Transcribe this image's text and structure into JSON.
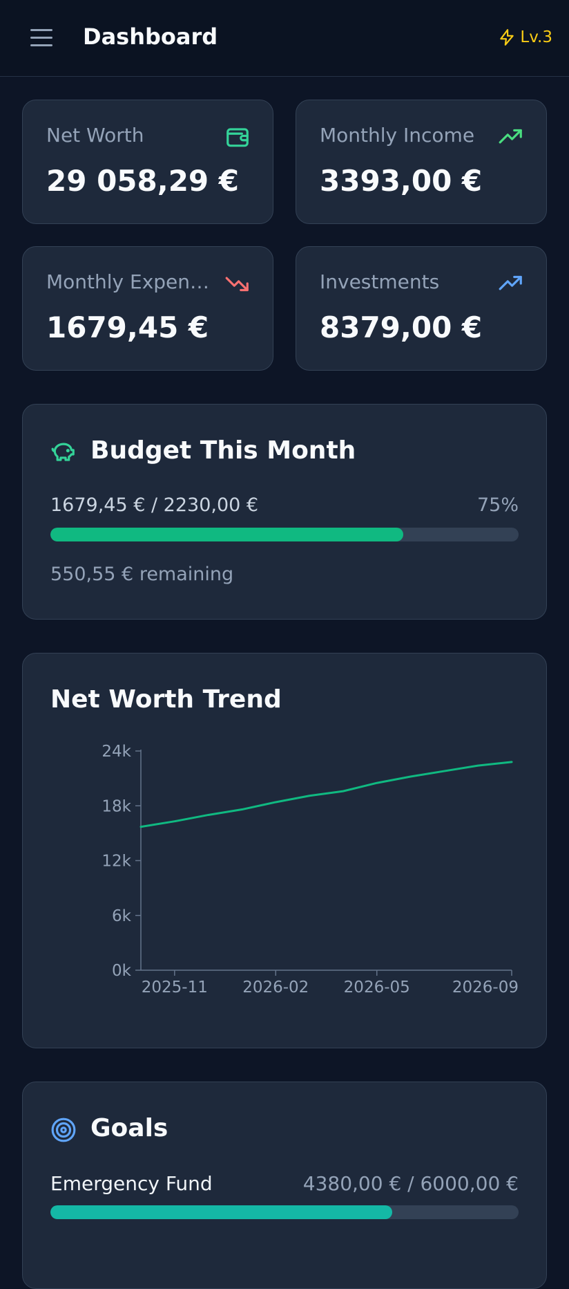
{
  "header": {
    "title": "Dashboard",
    "level_label": "Lv.3",
    "menu_icon": "hamburger-menu-icon",
    "level_icon": "lightning-bolt-icon"
  },
  "stats": [
    {
      "label": "Net Worth",
      "value": "29 058,29 €",
      "icon": "wallet-icon",
      "icon_color": "#34d399"
    },
    {
      "label": "Monthly Income",
      "value": "3393,00 €",
      "icon": "trending-up-icon",
      "icon_color": "#4ade80"
    },
    {
      "label": "Monthly Expenses",
      "value": "1679,45 €",
      "icon": "trending-down-icon",
      "icon_color": "#f87171"
    },
    {
      "label": "Investments",
      "value": "8379,00 €",
      "icon": "trending-up-icon",
      "icon_color": "#60a5fa"
    }
  ],
  "budget": {
    "title": "Budget This Month",
    "icon": "piggy-bank-icon",
    "spent_text": "1679,45 € / 2230,00 €",
    "percent_text": "75%",
    "progress": 0.753,
    "remaining_text": "550,55 € remaining",
    "bar_color": "#10b981"
  },
  "trend": {
    "title": "Net Worth Trend"
  },
  "chart_data": {
    "type": "line",
    "title": "Net Worth Trend",
    "x": [
      "2025-10",
      "2025-11",
      "2025-12",
      "2026-01",
      "2026-02",
      "2026-03",
      "2026-04",
      "2026-05",
      "2026-06",
      "2026-07",
      "2026-08",
      "2026-09"
    ],
    "series": [
      {
        "values": [
          15700,
          16300,
          17000,
          17600,
          18400,
          19100,
          19600,
          20500,
          21200,
          21800,
          22400,
          22800
        ],
        "color": "#10b981"
      }
    ],
    "xticks": [
      "2025-11",
      "2026-02",
      "2026-05",
      "2026-09"
    ],
    "yticks": [
      "0k",
      "6k",
      "12k",
      "18k",
      "24k"
    ],
    "ylim": [
      0,
      24000
    ],
    "grid": false,
    "xlabel": "",
    "ylabel": ""
  },
  "goals": {
    "title": "Goals",
    "icon": "target-icon",
    "items": [
      {
        "name": "Emergency Fund",
        "amount": "4380,00 € / 6000,00 €",
        "progress": 0.73,
        "color": "#14b8a6"
      }
    ]
  }
}
